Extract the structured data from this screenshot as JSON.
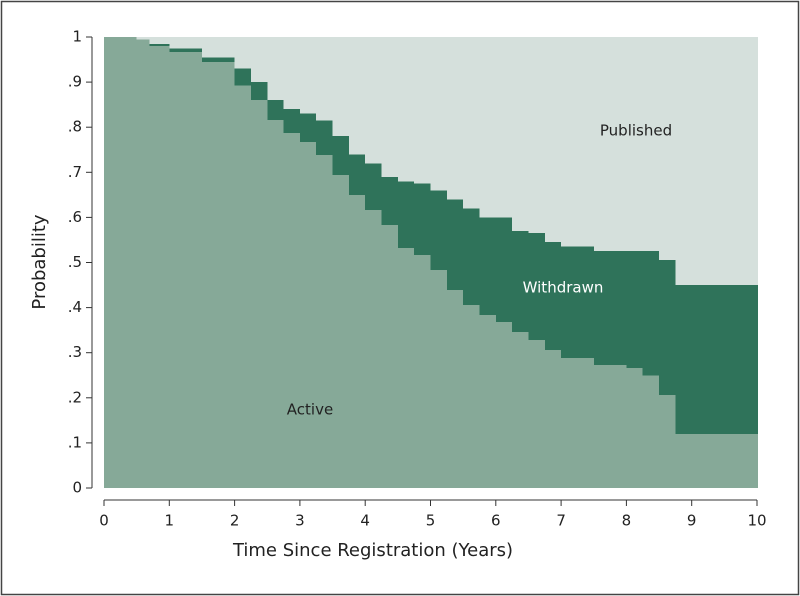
{
  "chart_data": {
    "type": "stacked-step-area",
    "x_label": "Time Since Registration (Years)",
    "y_label": "Probability",
    "x": [
      0,
      0.5,
      0.7,
      1,
      1.5,
      2,
      2.25,
      2.5,
      2.75,
      3,
      3.25,
      3.5,
      3.75,
      4,
      4.25,
      4.5,
      4.75,
      5,
      5.25,
      5.5,
      5.75,
      6,
      6.25,
      6.5,
      6.75,
      7,
      7.5,
      8,
      8.25,
      8.5,
      8.75,
      9,
      9.5,
      10
    ],
    "series": [
      {
        "name": "Active",
        "color": "#86a998",
        "values": [
          1,
          0.995,
          0.98,
          0.967,
          0.945,
          0.893,
          0.86,
          0.816,
          0.787,
          0.767,
          0.738,
          0.694,
          0.65,
          0.616,
          0.583,
          0.532,
          0.517,
          0.483,
          0.439,
          0.406,
          0.384,
          0.368,
          0.346,
          0.328,
          0.306,
          0.288,
          0.273,
          0.266,
          0.25,
          0.206,
          0.12,
          0.12,
          0.12,
          0.12
        ]
      },
      {
        "name": "Withdrawn",
        "color": "#2f735a",
        "values": [
          0,
          0,
          0.005,
          0.008,
          0.01,
          0.037,
          0.04,
          0.044,
          0.053,
          0.063,
          0.077,
          0.086,
          0.09,
          0.104,
          0.107,
          0.148,
          0.158,
          0.177,
          0.201,
          0.214,
          0.216,
          0.232,
          0.224,
          0.237,
          0.239,
          0.247,
          0.252,
          0.259,
          0.275,
          0.299,
          0.33,
          0.33,
          0.33,
          0.33
        ]
      },
      {
        "name": "Published",
        "color": "#d5e0dc",
        "values": [
          0,
          0.005,
          0.015,
          0.025,
          0.045,
          0.07,
          0.1,
          0.14,
          0.16,
          0.17,
          0.185,
          0.22,
          0.26,
          0.28,
          0.31,
          0.32,
          0.325,
          0.34,
          0.36,
          0.38,
          0.4,
          0.4,
          0.43,
          0.435,
          0.455,
          0.465,
          0.475,
          0.475,
          0.475,
          0.495,
          0.55,
          0.55,
          0.55,
          0.55
        ]
      }
    ],
    "xlim": [
      0,
      10
    ],
    "xticks": [
      0,
      1,
      2,
      3,
      4,
      5,
      6,
      7,
      8,
      9,
      10
    ],
    "ylim": [
      0,
      1
    ],
    "yticks": [
      0,
      {
        "value": 0.1,
        "label": ".1"
      },
      {
        "value": 0.2,
        "label": ".2"
      },
      {
        "value": 0.3,
        "label": ".3"
      },
      {
        "value": 0.4,
        "label": ".4"
      },
      {
        "value": 0.5,
        "label": ".5"
      },
      {
        "value": 0.6,
        "label": ".6"
      },
      {
        "value": 0.7,
        "label": ".7"
      },
      {
        "value": 0.8,
        "label": ".8"
      },
      {
        "value": 0.9,
        "label": ".9"
      },
      1
    ]
  }
}
